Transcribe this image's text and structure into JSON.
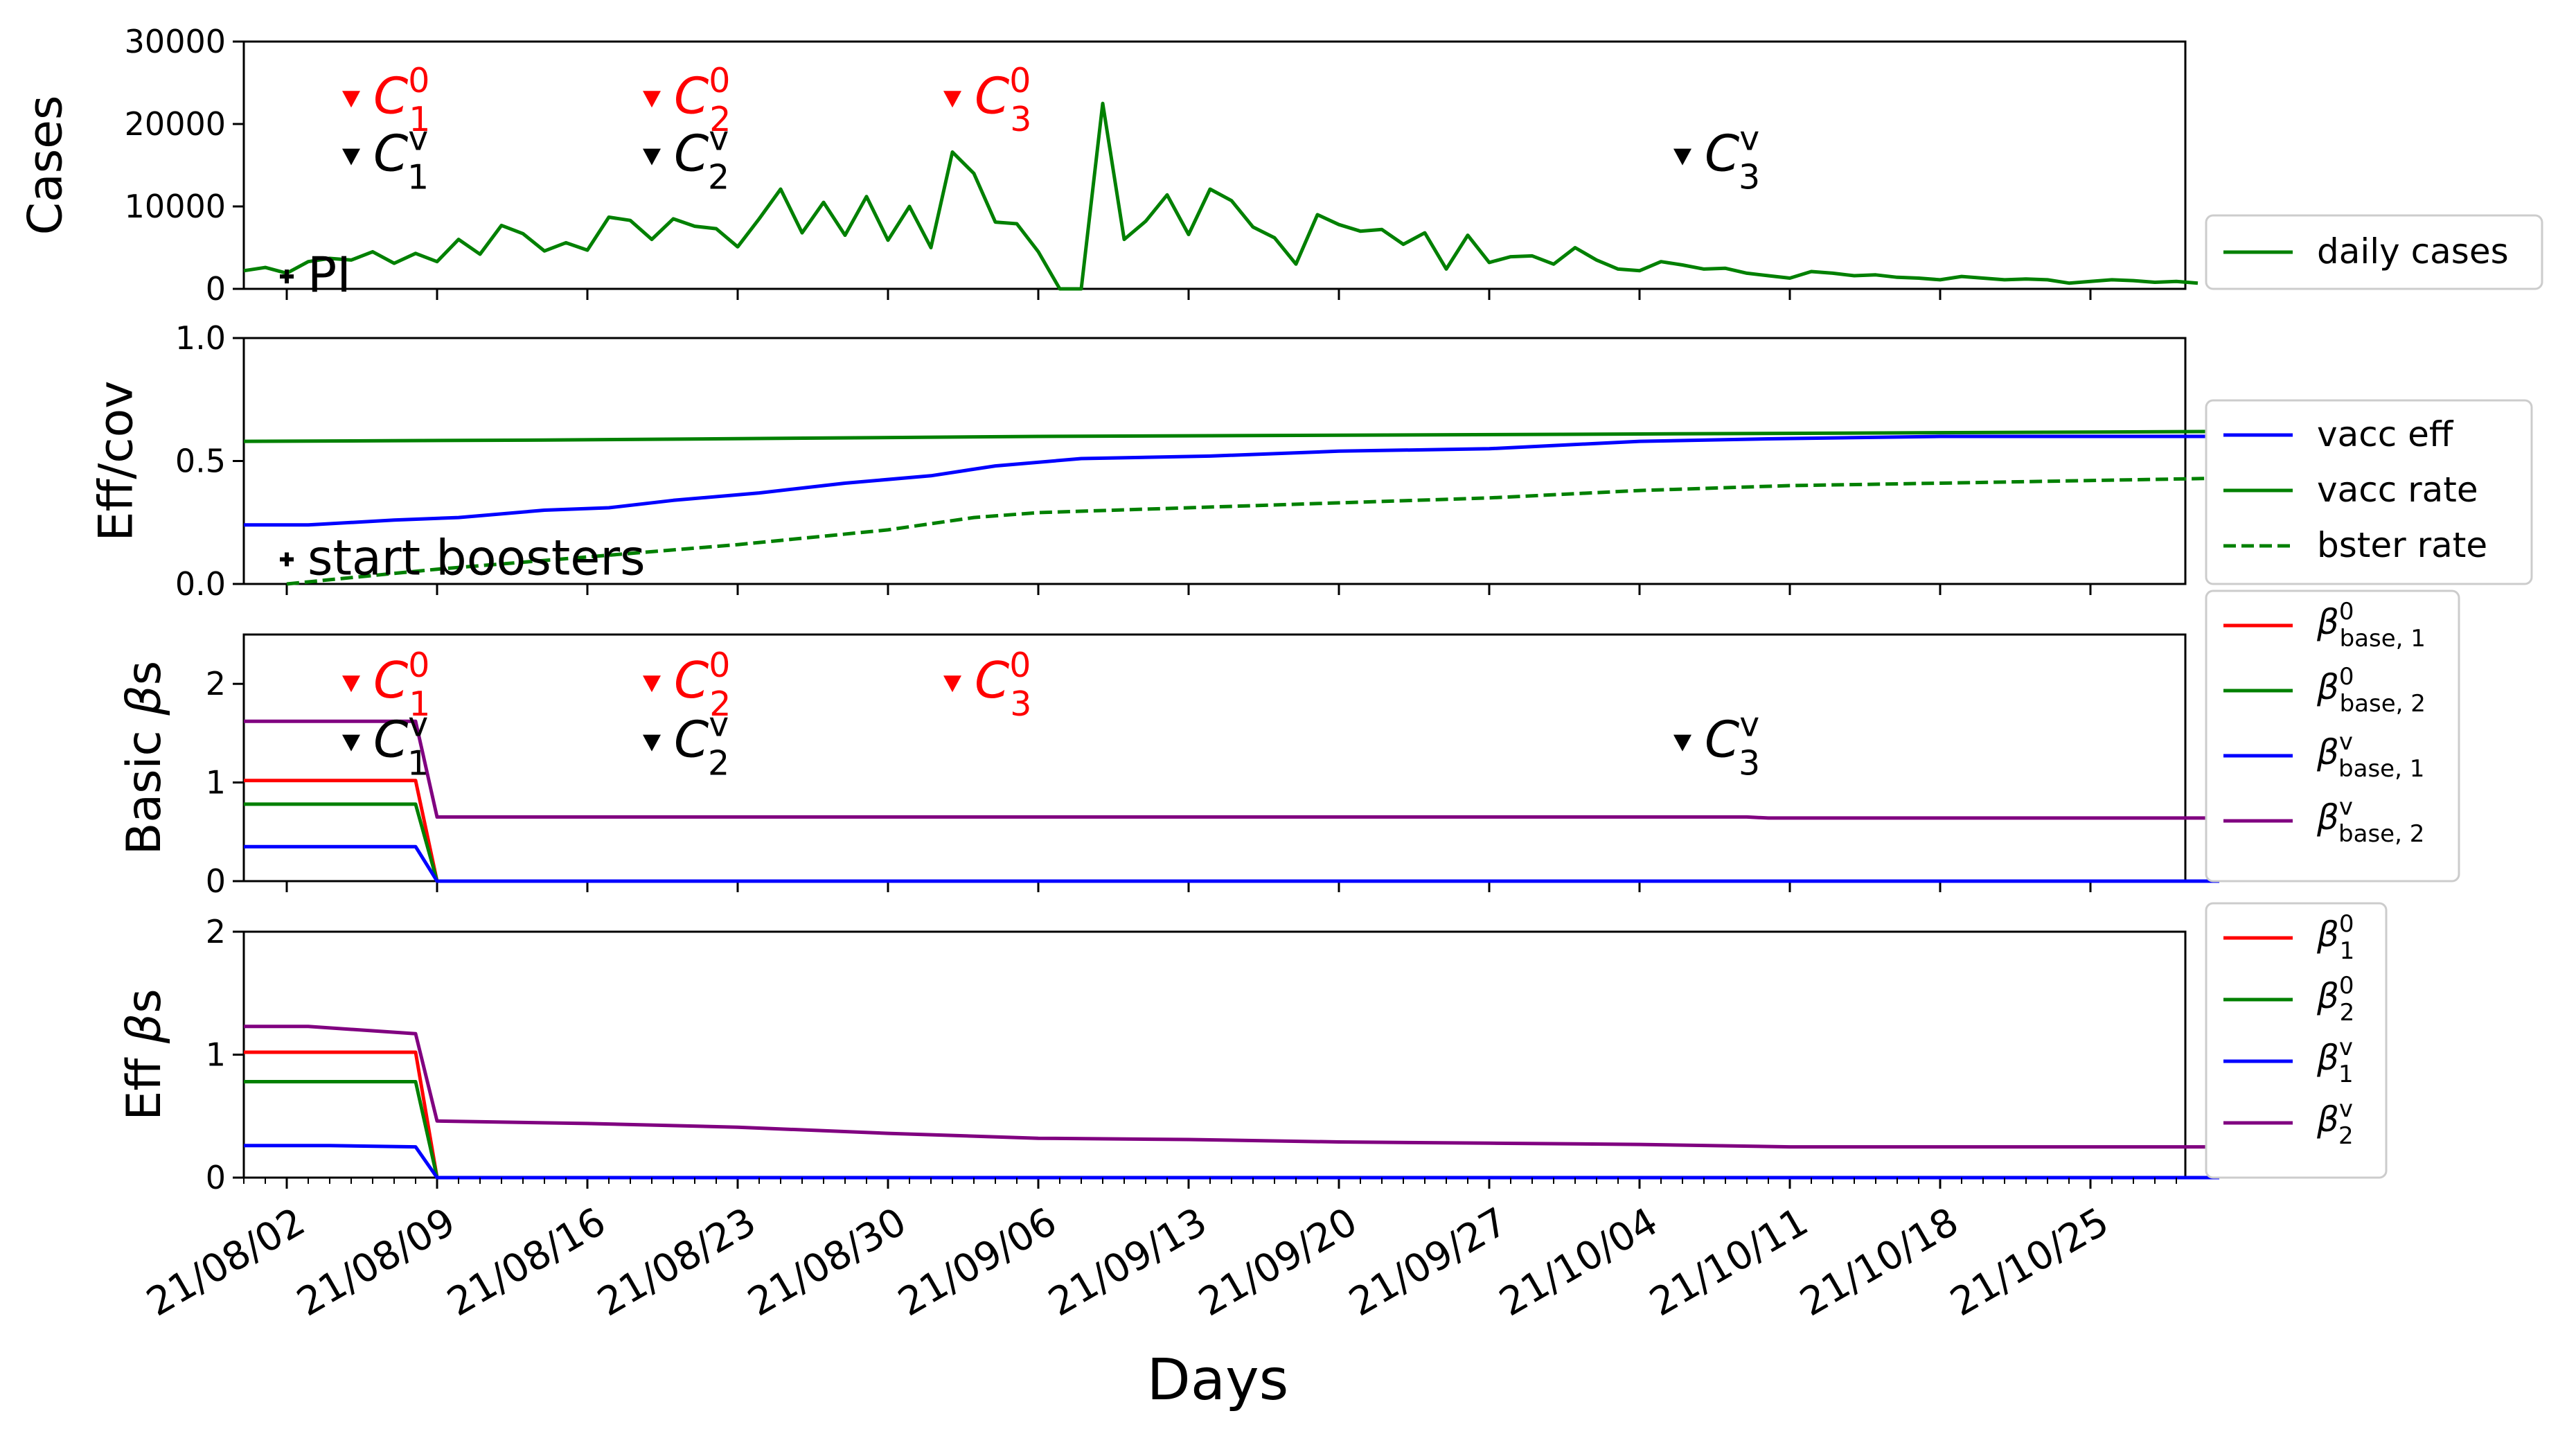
{
  "xlabel": "Days",
  "date_ticks": [
    "21/08/02",
    "21/08/09",
    "21/08/16",
    "21/08/23",
    "21/08/30",
    "21/09/06",
    "21/09/13",
    "21/09/20",
    "21/09/27",
    "21/10/04",
    "21/10/11",
    "21/10/18",
    "21/10/25"
  ],
  "colors": {
    "red": "#ff0000",
    "green": "#008000",
    "blue": "#0000ff",
    "purple": "#800080",
    "black": "#000000"
  },
  "chart_data": [
    {
      "type": "line",
      "ylabel": "Cases",
      "ylim": [
        0,
        30000
      ],
      "yticks": [
        "0",
        "10000",
        "20000",
        "30000"
      ],
      "x_start": "2021-07-31",
      "series": [
        {
          "name": "daily cases",
          "color": "#008000",
          "values": [
            2200,
            2600,
            1900,
            3300,
            3700,
            3500,
            4500,
            3100,
            4300,
            3300,
            6000,
            4200,
            7700,
            6700,
            4600,
            5600,
            4700,
            8700,
            8300,
            6000,
            8500,
            7600,
            7300,
            5100,
            8500,
            12100,
            6800,
            10500,
            6500,
            11200,
            5900,
            10000,
            5000,
            16600,
            14000,
            8100,
            7900,
            4500,
            0,
            0,
            22500,
            6000,
            8200,
            11400,
            6600,
            12100,
            10700,
            7500,
            6200,
            3000,
            9000,
            7800,
            7000,
            7200,
            5400,
            6800,
            2400,
            6500,
            3200,
            3900,
            4000,
            3000,
            5000,
            3500,
            2400,
            2200,
            3300,
            2900,
            2400,
            2500,
            1900,
            1600,
            1300,
            2100,
            1900,
            1600,
            1700,
            1400,
            1300,
            1100,
            1500,
            1300,
            1100,
            1200,
            1100,
            700,
            900,
            1100,
            1000,
            800,
            900,
            700
          ]
        }
      ],
      "annotations": [
        {
          "text": "PI",
          "color": "#000000",
          "date": "2021-08-02",
          "value": 1500,
          "marker": "plus"
        },
        {
          "text": "C10",
          "base": "C",
          "sub": "1",
          "sup": "0",
          "color": "#ff0000",
          "date": "2021-08-05",
          "value": 23000,
          "marker": "triangle-down"
        },
        {
          "text": "C1v",
          "base": "C",
          "sub": "1",
          "sup": "v",
          "color": "#000000",
          "date": "2021-08-05",
          "value": 16000,
          "marker": "triangle-down"
        },
        {
          "text": "C20",
          "base": "C",
          "sub": "2",
          "sup": "0",
          "color": "#ff0000",
          "date": "2021-08-19",
          "value": 23000,
          "marker": "triangle-down"
        },
        {
          "text": "C2v",
          "base": "C",
          "sub": "2",
          "sup": "v",
          "color": "#000000",
          "date": "2021-08-19",
          "value": 16000,
          "marker": "triangle-down"
        },
        {
          "text": "C30",
          "base": "C",
          "sub": "3",
          "sup": "0",
          "color": "#ff0000",
          "date": "2021-09-02",
          "value": 23000,
          "marker": "triangle-down"
        },
        {
          "text": "C3v",
          "base": "C",
          "sub": "3",
          "sup": "v",
          "color": "#000000",
          "date": "2021-10-06",
          "value": 16000,
          "marker": "triangle-down"
        }
      ]
    },
    {
      "type": "line",
      "ylabel": "Eff/cov",
      "ylim": [
        0,
        1
      ],
      "yticks": [
        "0.0",
        "0.5",
        "1.0"
      ],
      "series": [
        {
          "name": "vacc eff",
          "color": "#0000ff",
          "dash": false,
          "points": [
            [
              "2021-07-31",
              0.24
            ],
            [
              "2021-08-03",
              0.24
            ],
            [
              "2021-08-07",
              0.26
            ],
            [
              "2021-08-10",
              0.27
            ],
            [
              "2021-08-14",
              0.3
            ],
            [
              "2021-08-17",
              0.31
            ],
            [
              "2021-08-20",
              0.34
            ],
            [
              "2021-08-24",
              0.37
            ],
            [
              "2021-08-28",
              0.41
            ],
            [
              "2021-09-01",
              0.44
            ],
            [
              "2021-09-04",
              0.48
            ],
            [
              "2021-09-08",
              0.51
            ],
            [
              "2021-09-14",
              0.52
            ],
            [
              "2021-09-20",
              0.54
            ],
            [
              "2021-09-27",
              0.55
            ],
            [
              "2021-10-04",
              0.58
            ],
            [
              "2021-10-10",
              0.59
            ],
            [
              "2021-10-18",
              0.6
            ],
            [
              "2021-10-31",
              0.6
            ]
          ]
        },
        {
          "name": "vacc rate",
          "color": "#008000",
          "dash": false,
          "points": [
            [
              "2021-07-31",
              0.58
            ],
            [
              "2021-08-14",
              0.585
            ],
            [
              "2021-09-06",
              0.6
            ],
            [
              "2021-10-04",
              0.61
            ],
            [
              "2021-10-31",
              0.62
            ]
          ]
        },
        {
          "name": "bster rate",
          "color": "#008000",
          "dash": true,
          "points": [
            [
              "2021-08-02",
              0.0
            ],
            [
              "2021-08-09",
              0.06
            ],
            [
              "2021-08-16",
              0.11
            ],
            [
              "2021-08-23",
              0.16
            ],
            [
              "2021-08-30",
              0.22
            ],
            [
              "2021-09-03",
              0.27
            ],
            [
              "2021-09-06",
              0.29
            ],
            [
              "2021-09-13",
              0.31
            ],
            [
              "2021-09-20",
              0.33
            ],
            [
              "2021-09-27",
              0.35
            ],
            [
              "2021-10-04",
              0.38
            ],
            [
              "2021-10-11",
              0.4
            ],
            [
              "2021-10-18",
              0.41
            ],
            [
              "2021-10-31",
              0.43
            ]
          ]
        }
      ],
      "annotations": [
        {
          "text": "start boosters",
          "color": "#000000",
          "date": "2021-08-02",
          "value": 0.1,
          "marker": "plus"
        }
      ]
    },
    {
      "type": "line",
      "ylabel": "Basic βs",
      "ylim": [
        0,
        2.5
      ],
      "yticks": [
        "0",
        "1",
        "2"
      ],
      "series": [
        {
          "name": "β0base,1",
          "base": "β",
          "sup": "0",
          "sub": "base, 1",
          "color": "#ff0000",
          "points": [
            [
              "2021-07-31",
              1.02
            ],
            [
              "2021-08-08",
              1.02
            ],
            [
              "2021-08-09",
              0.0
            ],
            [
              "2021-10-31",
              0.0
            ]
          ]
        },
        {
          "name": "β0base,2",
          "base": "β",
          "sup": "0",
          "sub": "base, 2",
          "color": "#008000",
          "points": [
            [
              "2021-07-31",
              0.78
            ],
            [
              "2021-08-08",
              0.78
            ],
            [
              "2021-08-09",
              0.0
            ],
            [
              "2021-10-31",
              0.0
            ]
          ]
        },
        {
          "name": "βvbase,1",
          "base": "β",
          "sup": "v",
          "sub": "base, 1",
          "color": "#0000ff",
          "points": [
            [
              "2021-07-31",
              0.35
            ],
            [
              "2021-08-08",
              0.35
            ],
            [
              "2021-08-09",
              0.0
            ],
            [
              "2021-10-31",
              0.0
            ]
          ]
        },
        {
          "name": "βvbase,2",
          "base": "β",
          "sup": "v",
          "sub": "base, 2",
          "color": "#800080",
          "points": [
            [
              "2021-07-31",
              1.62
            ],
            [
              "2021-08-08",
              1.62
            ],
            [
              "2021-08-09",
              0.65
            ],
            [
              "2021-10-09",
              0.65
            ],
            [
              "2021-10-10",
              0.64
            ],
            [
              "2021-10-31",
              0.64
            ]
          ]
        }
      ],
      "annotations": [
        {
          "text": "C10",
          "base": "C",
          "sub": "1",
          "sup": "0",
          "color": "#ff0000",
          "date": "2021-08-05",
          "value": 2.0,
          "marker": "triangle-down"
        },
        {
          "text": "C1v",
          "base": "C",
          "sub": "1",
          "sup": "v",
          "color": "#000000",
          "date": "2021-08-05",
          "value": 1.4,
          "marker": "triangle-down"
        },
        {
          "text": "C20",
          "base": "C",
          "sub": "2",
          "sup": "0",
          "color": "#ff0000",
          "date": "2021-08-19",
          "value": 2.0,
          "marker": "triangle-down"
        },
        {
          "text": "C2v",
          "base": "C",
          "sub": "2",
          "sup": "v",
          "color": "#000000",
          "date": "2021-08-19",
          "value": 1.4,
          "marker": "triangle-down"
        },
        {
          "text": "C30",
          "base": "C",
          "sub": "3",
          "sup": "0",
          "color": "#ff0000",
          "date": "2021-09-02",
          "value": 2.0,
          "marker": "triangle-down"
        },
        {
          "text": "C3v",
          "base": "C",
          "sub": "3",
          "sup": "v",
          "color": "#000000",
          "date": "2021-10-06",
          "value": 1.4,
          "marker": "triangle-down"
        }
      ]
    },
    {
      "type": "line",
      "ylabel": "Eff βs",
      "ylim": [
        0,
        2
      ],
      "yticks": [
        "0",
        "1",
        "2"
      ],
      "series": [
        {
          "name": "β01",
          "base": "β",
          "sup": "0",
          "sub": "1",
          "color": "#ff0000",
          "points": [
            [
              "2021-07-31",
              1.02
            ],
            [
              "2021-08-08",
              1.02
            ],
            [
              "2021-08-09",
              0.0
            ],
            [
              "2021-10-31",
              0.0
            ]
          ]
        },
        {
          "name": "β02",
          "base": "β",
          "sup": "0",
          "sub": "2",
          "color": "#008000",
          "points": [
            [
              "2021-07-31",
              0.78
            ],
            [
              "2021-08-08",
              0.78
            ],
            [
              "2021-08-09",
              0.0
            ],
            [
              "2021-10-31",
              0.0
            ]
          ]
        },
        {
          "name": "βv1",
          "base": "β",
          "sup": "v",
          "sub": "1",
          "color": "#0000ff",
          "points": [
            [
              "2021-07-31",
              0.26
            ],
            [
              "2021-08-04",
              0.26
            ],
            [
              "2021-08-08",
              0.25
            ],
            [
              "2021-08-09",
              0.0
            ],
            [
              "2021-10-31",
              0.0
            ]
          ]
        },
        {
          "name": "βv2",
          "base": "β",
          "sup": "v",
          "sub": "2",
          "color": "#800080",
          "points": [
            [
              "2021-07-31",
              1.23
            ],
            [
              "2021-08-03",
              1.23
            ],
            [
              "2021-08-08",
              1.17
            ],
            [
              "2021-08-09",
              0.46
            ],
            [
              "2021-08-16",
              0.44
            ],
            [
              "2021-08-23",
              0.41
            ],
            [
              "2021-08-30",
              0.36
            ],
            [
              "2021-09-06",
              0.32
            ],
            [
              "2021-09-13",
              0.31
            ],
            [
              "2021-09-20",
              0.29
            ],
            [
              "2021-09-27",
              0.28
            ],
            [
              "2021-10-04",
              0.27
            ],
            [
              "2021-10-11",
              0.25
            ],
            [
              "2021-10-31",
              0.25
            ]
          ]
        }
      ],
      "annotations": []
    }
  ]
}
